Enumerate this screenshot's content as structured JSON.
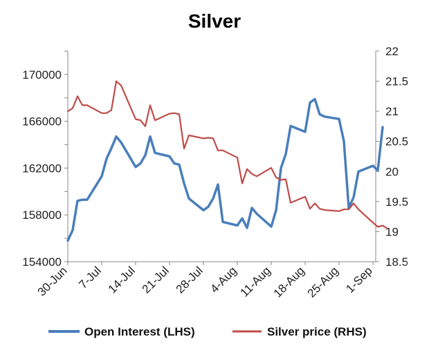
{
  "chart_data": {
    "type": "line",
    "title": "Silver",
    "x_tick_labels": [
      "30-Jun",
      "7-Jul",
      "14-Jul",
      "21-Jul",
      "28-Jul",
      "4-Aug",
      "11-Aug",
      "18-Aug",
      "25-Aug",
      "1-Sep"
    ],
    "y_left": {
      "ticks": [
        "154000",
        "158000",
        "162000",
        "166000",
        "170000"
      ],
      "ylim": [
        154000,
        172000
      ]
    },
    "y_right": {
      "ticks": [
        "18.5",
        "19",
        "19.5",
        "20",
        "20.5",
        "21",
        "21.5",
        "22"
      ],
      "ylim": [
        18.5,
        22
      ]
    },
    "grid": false,
    "legend_position": "bottom",
    "series": [
      {
        "name": "Open Interest (LHS)",
        "axis": "left",
        "color": "#4a7ebb",
        "points": [
          [
            0,
            155800
          ],
          [
            1,
            156700
          ],
          [
            2,
            159200
          ],
          [
            3,
            159300
          ],
          [
            4,
            159300
          ],
          [
            7,
            161300
          ],
          [
            8,
            162800
          ],
          [
            9,
            163700
          ],
          [
            10,
            164700
          ],
          [
            11,
            164200
          ],
          [
            14,
            162100
          ],
          [
            15,
            162400
          ],
          [
            16,
            163100
          ],
          [
            17,
            164700
          ],
          [
            18,
            163300
          ],
          [
            21,
            163000
          ],
          [
            22,
            162400
          ],
          [
            23,
            162300
          ],
          [
            24,
            160700
          ],
          [
            25,
            159400
          ],
          [
            28,
            158400
          ],
          [
            29,
            158700
          ],
          [
            30,
            159400
          ],
          [
            31,
            160600
          ],
          [
            32,
            157400
          ],
          [
            35,
            157100
          ],
          [
            36,
            157700
          ],
          [
            37,
            156900
          ],
          [
            38,
            158600
          ],
          [
            39,
            158100
          ],
          [
            42,
            157000
          ],
          [
            43,
            158400
          ],
          [
            44,
            162000
          ],
          [
            45,
            163200
          ],
          [
            46,
            165600
          ],
          [
            49,
            165100
          ],
          [
            50,
            167600
          ],
          [
            51,
            167900
          ],
          [
            52,
            166600
          ],
          [
            53,
            166400
          ],
          [
            56,
            166200
          ],
          [
            57,
            164300
          ],
          [
            58,
            158600
          ],
          [
            59,
            159500
          ],
          [
            60,
            161700
          ],
          [
            63,
            162200
          ],
          [
            64,
            161800
          ],
          [
            65,
            165500
          ]
        ]
      },
      {
        "name": "Silver price (RHS)",
        "axis": "right",
        "color": "#be4b48",
        "points": [
          [
            0,
            21.0
          ],
          [
            1,
            21.05
          ],
          [
            2,
            21.25
          ],
          [
            3,
            21.1
          ],
          [
            4,
            21.1
          ],
          [
            7,
            20.97
          ],
          [
            8,
            20.97
          ],
          [
            9,
            21.02
          ],
          [
            10,
            21.5
          ],
          [
            11,
            21.43
          ],
          [
            14,
            20.87
          ],
          [
            15,
            20.85
          ],
          [
            16,
            20.75
          ],
          [
            17,
            21.1
          ],
          [
            18,
            20.85
          ],
          [
            21,
            20.96
          ],
          [
            22,
            20.97
          ],
          [
            23,
            20.95
          ],
          [
            24,
            20.38
          ],
          [
            25,
            20.6
          ],
          [
            28,
            20.55
          ],
          [
            29,
            20.56
          ],
          [
            30,
            20.55
          ],
          [
            31,
            20.35
          ],
          [
            32,
            20.35
          ],
          [
            35,
            20.23
          ],
          [
            36,
            19.8
          ],
          [
            37,
            20.04
          ],
          [
            38,
            19.96
          ],
          [
            39,
            19.92
          ],
          [
            42,
            20.06
          ],
          [
            43,
            19.9
          ],
          [
            44,
            19.86
          ],
          [
            45,
            19.87
          ],
          [
            46,
            19.48
          ],
          [
            49,
            19.58
          ],
          [
            50,
            19.38
          ],
          [
            51,
            19.47
          ],
          [
            52,
            19.38
          ],
          [
            53,
            19.36
          ],
          [
            56,
            19.34
          ],
          [
            57,
            19.37
          ],
          [
            58,
            19.37
          ],
          [
            59,
            19.47
          ],
          [
            60,
            19.37
          ],
          [
            63,
            19.15
          ],
          [
            64,
            19.08
          ],
          [
            65,
            19.1
          ],
          [
            66,
            19.05
          ]
        ]
      }
    ]
  }
}
